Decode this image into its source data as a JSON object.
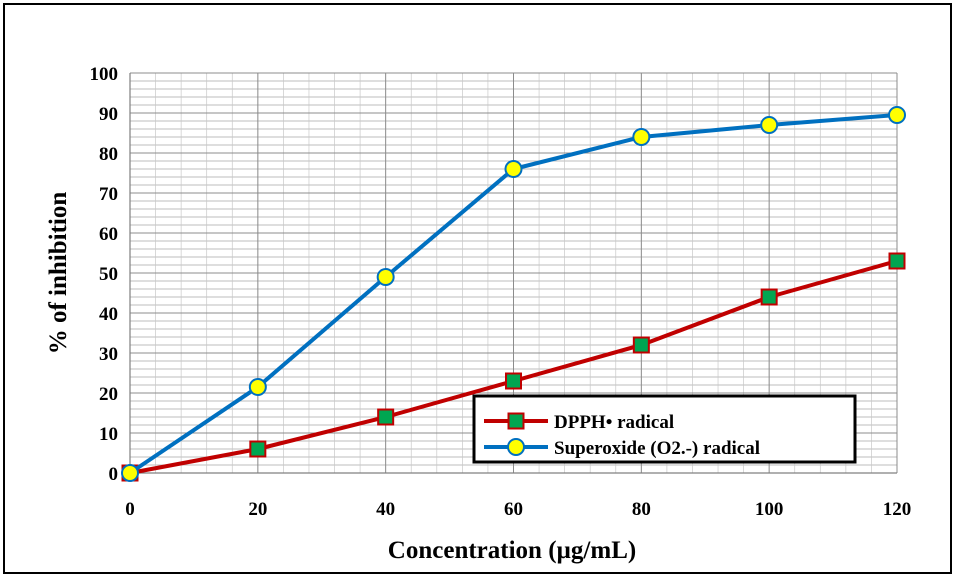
{
  "chart_data": {
    "type": "line",
    "title": "",
    "xlabel": "Concentration (µg/mL)",
    "ylabel": "% of inhibition",
    "x": [
      0,
      20,
      40,
      60,
      80,
      100,
      120
    ],
    "xlim": [
      0,
      120
    ],
    "ylim": [
      0,
      100
    ],
    "y_ticks": [
      0,
      10,
      20,
      30,
      40,
      50,
      60,
      70,
      80,
      90,
      100
    ],
    "x_ticks": [
      0,
      20,
      40,
      60,
      80,
      100,
      120
    ],
    "grid": true,
    "legend_position": "bottom-right",
    "series": [
      {
        "name": "DPPH• radical",
        "marker": "square",
        "line_color": "#C00000",
        "marker_fill": "#00A651",
        "marker_edge": "#C00000",
        "values": [
          0,
          6,
          14,
          23,
          32,
          44,
          53
        ]
      },
      {
        "name": "Superoxide (O2.-) radical",
        "marker": "circle",
        "line_color": "#0070C0",
        "marker_fill": "#FFFF00",
        "marker_edge": "#0070C0",
        "values": [
          0,
          21.5,
          49,
          76,
          84,
          87,
          89.5
        ]
      }
    ]
  }
}
